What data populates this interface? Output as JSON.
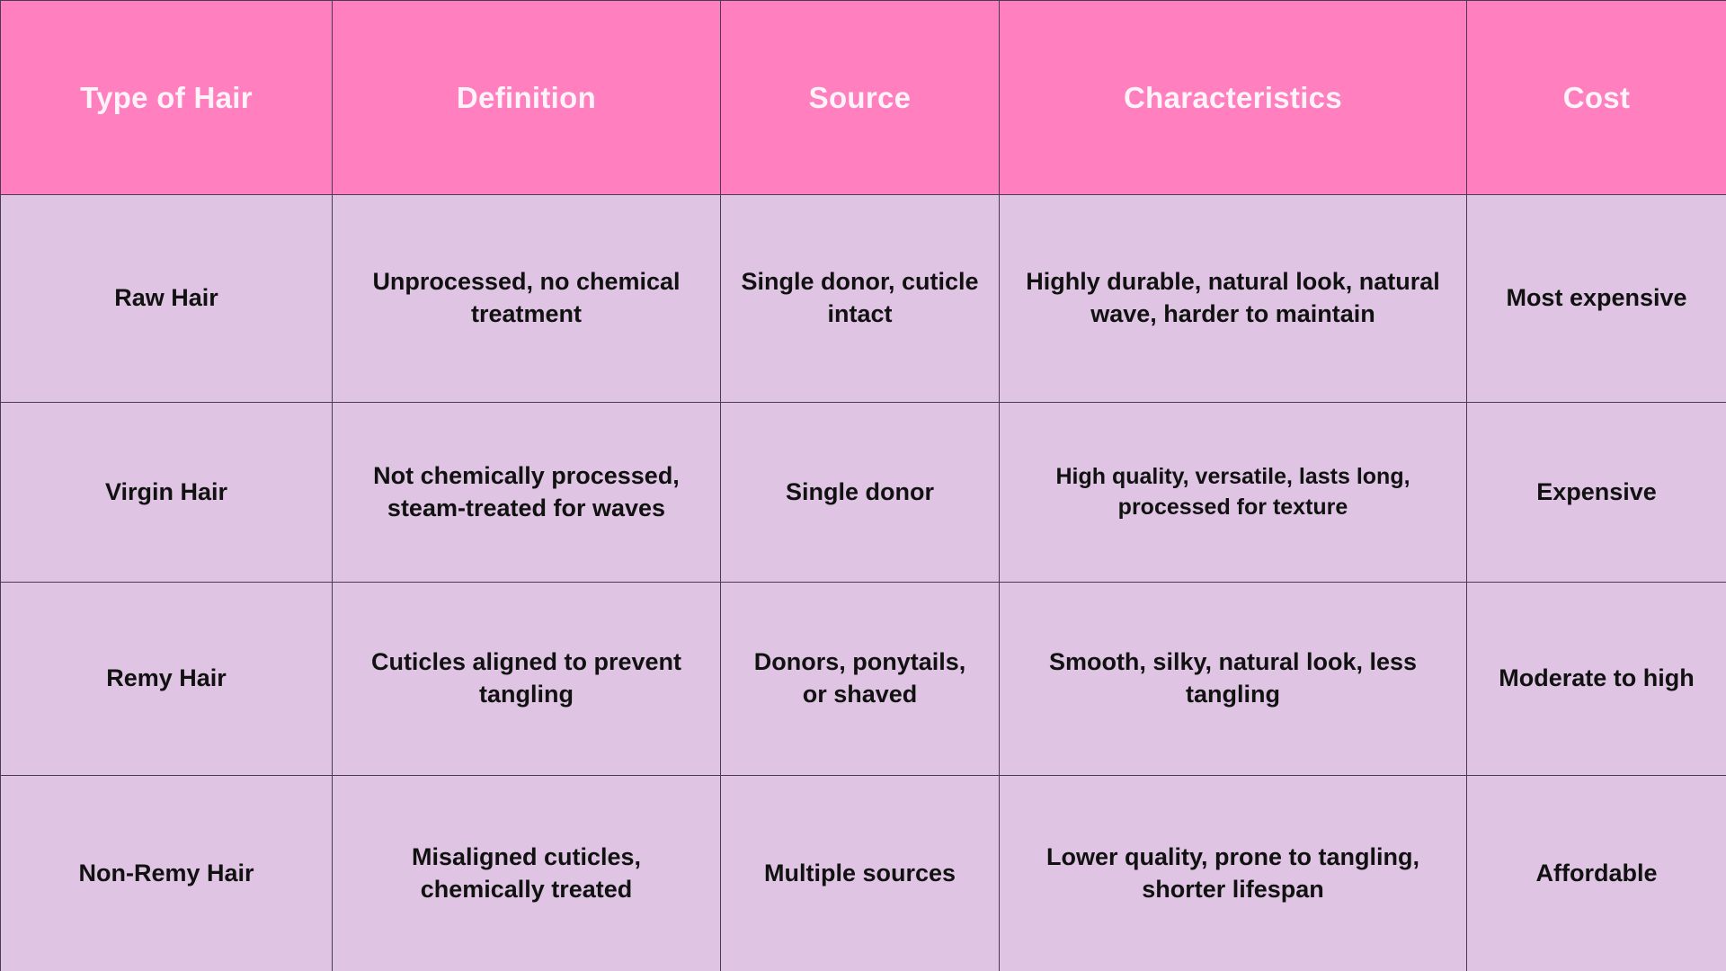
{
  "chart_data": {
    "type": "table",
    "columns": [
      "Type of Hair",
      "Definition",
      "Source",
      "Characteristics",
      "Cost"
    ],
    "rows": [
      [
        "Raw Hair",
        "Unprocessed, no chemical treatment",
        "Single donor, cuticle intact",
        "Highly durable, natural look, natural wave, harder to maintain",
        "Most expensive"
      ],
      [
        "Virgin Hair",
        "Not chemically processed, steam-treated for waves",
        "Single donor",
        "High quality, versatile, lasts long, processed for texture",
        "Expensive"
      ],
      [
        "Remy Hair",
        "Cuticles aligned to prevent tangling",
        "Donors, ponytails, or shaved",
        "Smooth, silky, natural look, less tangling",
        "Moderate to high"
      ],
      [
        "Non-Remy Hair",
        "Misaligned cuticles, chemically treated",
        "Multiple sources",
        "Lower quality, prone to tangling, shorter lifespan",
        "Affordable"
      ]
    ]
  },
  "colors": {
    "header_background": "#ff7fbf",
    "header_text": "#fdf3f8",
    "cell_background": "#dfc5e3",
    "cell_text": "#111111",
    "border": "#4a3a52"
  }
}
